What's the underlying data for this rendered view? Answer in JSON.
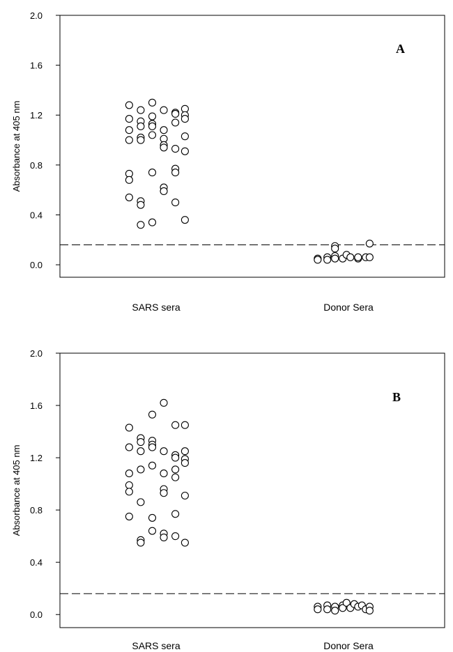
{
  "chart_data": [
    {
      "type": "scatter",
      "panel_label": "A",
      "ylabel": "Absorbance at 405 nm",
      "ylim": [
        -0.1,
        2.0
      ],
      "yticks": [
        "0.0",
        "0.4",
        "0.8",
        "1.2",
        "1.6",
        "2.0"
      ],
      "categories": [
        "SARS sera",
        "Donor Sera"
      ],
      "cutoff": 0.16,
      "grid": false,
      "series": [
        {
          "category": "SARS sera",
          "points": [
            {
              "x": 0.72,
              "y": 1.28
            },
            {
              "x": 0.84,
              "y": 1.24
            },
            {
              "x": 0.96,
              "y": 1.3
            },
            {
              "x": 1.08,
              "y": 1.24
            },
            {
              "x": 1.2,
              "y": 1.22
            },
            {
              "x": 1.3,
              "y": 1.25
            },
            {
              "x": 0.72,
              "y": 1.17
            },
            {
              "x": 0.84,
              "y": 1.15
            },
            {
              "x": 0.96,
              "y": 1.19
            },
            {
              "x": 1.2,
              "y": 1.21
            },
            {
              "x": 1.3,
              "y": 1.2
            },
            {
              "x": 1.3,
              "y": 1.17
            },
            {
              "x": 0.84,
              "y": 1.11
            },
            {
              "x": 0.96,
              "y": 1.13
            },
            {
              "x": 0.96,
              "y": 1.11
            },
            {
              "x": 1.2,
              "y": 1.14
            },
            {
              "x": 0.72,
              "y": 1.08
            },
            {
              "x": 1.08,
              "y": 1.08
            },
            {
              "x": 0.84,
              "y": 1.02
            },
            {
              "x": 0.72,
              "y": 1.0
            },
            {
              "x": 0.84,
              "y": 1.0
            },
            {
              "x": 0.96,
              "y": 1.04
            },
            {
              "x": 1.08,
              "y": 1.01
            },
            {
              "x": 1.3,
              "y": 1.03
            },
            {
              "x": 1.08,
              "y": 0.96
            },
            {
              "x": 1.08,
              "y": 0.94
            },
            {
              "x": 1.2,
              "y": 0.93
            },
            {
              "x": 1.3,
              "y": 0.91
            },
            {
              "x": 0.72,
              "y": 0.73
            },
            {
              "x": 0.72,
              "y": 0.68
            },
            {
              "x": 0.96,
              "y": 0.74
            },
            {
              "x": 1.2,
              "y": 0.77
            },
            {
              "x": 1.2,
              "y": 0.74
            },
            {
              "x": 1.08,
              "y": 0.62
            },
            {
              "x": 1.08,
              "y": 0.59
            },
            {
              "x": 0.72,
              "y": 0.54
            },
            {
              "x": 0.84,
              "y": 0.51
            },
            {
              "x": 0.84,
              "y": 0.48
            },
            {
              "x": 1.2,
              "y": 0.5
            },
            {
              "x": 0.84,
              "y": 0.32
            },
            {
              "x": 0.96,
              "y": 0.34
            },
            {
              "x": 1.3,
              "y": 0.36
            }
          ]
        },
        {
          "category": "Donor Sera",
          "points": [
            {
              "x": 2.68,
              "y": 0.05
            },
            {
              "x": 2.68,
              "y": 0.04
            },
            {
              "x": 2.78,
              "y": 0.06
            },
            {
              "x": 2.78,
              "y": 0.04
            },
            {
              "x": 2.86,
              "y": 0.07
            },
            {
              "x": 2.86,
              "y": 0.05
            },
            {
              "x": 2.86,
              "y": 0.15
            },
            {
              "x": 2.86,
              "y": 0.13
            },
            {
              "x": 2.94,
              "y": 0.05
            },
            {
              "x": 2.98,
              "y": 0.08
            },
            {
              "x": 3.02,
              "y": 0.06
            },
            {
              "x": 3.1,
              "y": 0.05
            },
            {
              "x": 3.1,
              "y": 0.06
            },
            {
              "x": 3.18,
              "y": 0.06
            },
            {
              "x": 3.22,
              "y": 0.17
            },
            {
              "x": 3.22,
              "y": 0.06
            }
          ]
        }
      ]
    },
    {
      "type": "scatter",
      "panel_label": "B",
      "ylabel": "Absorbance at 405 nm",
      "ylim": [
        -0.1,
        2.0
      ],
      "yticks": [
        "0.0",
        "0.4",
        "0.8",
        "1.2",
        "1.6",
        "2.0"
      ],
      "categories": [
        "SARS sera",
        "Donor Sera"
      ],
      "cutoff": 0.16,
      "grid": false,
      "series": [
        {
          "category": "SARS sera",
          "points": [
            {
              "x": 1.08,
              "y": 1.62
            },
            {
              "x": 0.96,
              "y": 1.53
            },
            {
              "x": 0.72,
              "y": 1.43
            },
            {
              "x": 1.2,
              "y": 1.45
            },
            {
              "x": 1.3,
              "y": 1.45
            },
            {
              "x": 0.84,
              "y": 1.35
            },
            {
              "x": 0.84,
              "y": 1.32
            },
            {
              "x": 0.96,
              "y": 1.33
            },
            {
              "x": 0.96,
              "y": 1.3
            },
            {
              "x": 0.72,
              "y": 1.28
            },
            {
              "x": 0.84,
              "y": 1.25
            },
            {
              "x": 0.96,
              "y": 1.28
            },
            {
              "x": 1.08,
              "y": 1.25
            },
            {
              "x": 1.2,
              "y": 1.22
            },
            {
              "x": 1.3,
              "y": 1.25
            },
            {
              "x": 1.2,
              "y": 1.2
            },
            {
              "x": 1.3,
              "y": 1.19
            },
            {
              "x": 1.3,
              "y": 1.16
            },
            {
              "x": 0.84,
              "y": 1.11
            },
            {
              "x": 0.96,
              "y": 1.14
            },
            {
              "x": 1.08,
              "y": 1.08
            },
            {
              "x": 0.72,
              "y": 1.08
            },
            {
              "x": 1.2,
              "y": 1.11
            },
            {
              "x": 1.2,
              "y": 1.05
            },
            {
              "x": 0.72,
              "y": 0.99
            },
            {
              "x": 0.72,
              "y": 0.94
            },
            {
              "x": 1.08,
              "y": 0.96
            },
            {
              "x": 1.08,
              "y": 0.93
            },
            {
              "x": 1.3,
              "y": 0.91
            },
            {
              "x": 0.84,
              "y": 0.86
            },
            {
              "x": 0.72,
              "y": 0.75
            },
            {
              "x": 0.96,
              "y": 0.74
            },
            {
              "x": 1.2,
              "y": 0.77
            },
            {
              "x": 0.96,
              "y": 0.64
            },
            {
              "x": 1.08,
              "y": 0.62
            },
            {
              "x": 1.08,
              "y": 0.59
            },
            {
              "x": 1.2,
              "y": 0.6
            },
            {
              "x": 0.84,
              "y": 0.57
            },
            {
              "x": 0.84,
              "y": 0.55
            },
            {
              "x": 1.3,
              "y": 0.55
            }
          ]
        },
        {
          "category": "Donor Sera",
          "points": [
            {
              "x": 2.68,
              "y": 0.06
            },
            {
              "x": 2.68,
              "y": 0.04
            },
            {
              "x": 2.78,
              "y": 0.07
            },
            {
              "x": 2.78,
              "y": 0.04
            },
            {
              "x": 2.86,
              "y": 0.06
            },
            {
              "x": 2.86,
              "y": 0.03
            },
            {
              "x": 2.94,
              "y": 0.07
            },
            {
              "x": 2.94,
              "y": 0.05
            },
            {
              "x": 2.98,
              "y": 0.09
            },
            {
              "x": 3.02,
              "y": 0.05
            },
            {
              "x": 3.06,
              "y": 0.08
            },
            {
              "x": 3.1,
              "y": 0.06
            },
            {
              "x": 3.14,
              "y": 0.07
            },
            {
              "x": 3.18,
              "y": 0.04
            },
            {
              "x": 3.22,
              "y": 0.06
            },
            {
              "x": 3.22,
              "y": 0.03
            }
          ]
        }
      ]
    }
  ]
}
